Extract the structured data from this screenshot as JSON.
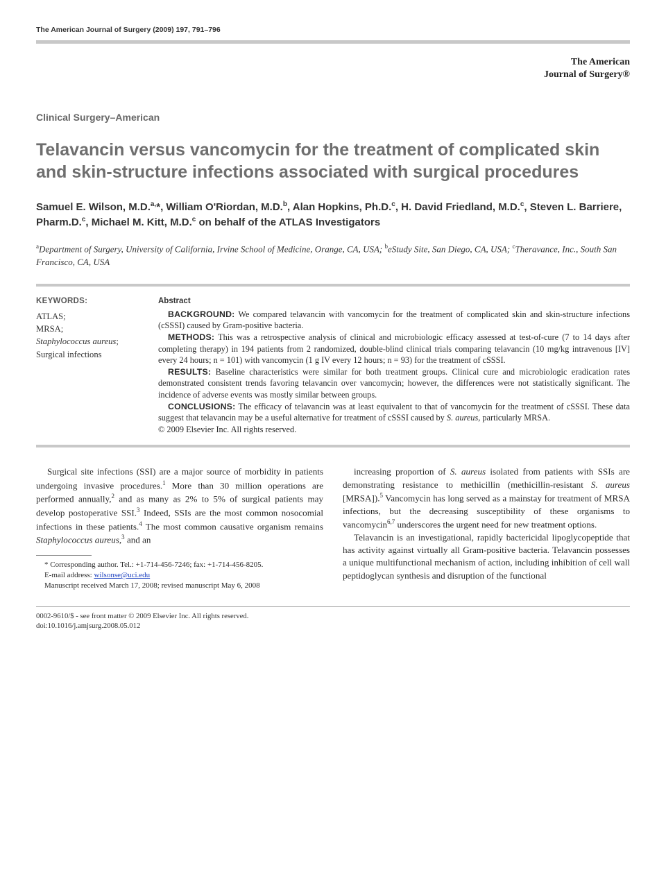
{
  "header": {
    "citation": "The American Journal of Surgery (2009) 197, 791–796",
    "brand_line1": "The American",
    "brand_line2": "Journal of Surgery®"
  },
  "section_label": "Clinical Surgery–American",
  "title": "Telavancin versus vancomycin for the treatment of complicated skin and skin-structure infections associated with surgical procedures",
  "authors_html": "Samuel E. Wilson, M.D.<sup>a,</sup>*, William O'Riordan, M.D.<sup>b</sup>, Alan Hopkins, Ph.D.<sup>c</sup>, H. David Friedland, M.D.<sup>c</sup>, Steven L. Barriere, Pharm.D.<sup>c</sup>, Michael M. Kitt, M.D.<sup>c</sup> on behalf of the ATLAS Investigators",
  "affiliations_html": "<sup>a</sup>Department of Surgery, University of California, Irvine School of Medicine, Orange, CA, USA; <sup>b</sup>eStudy Site, San Diego, CA, USA; <sup>c</sup>Theravance, Inc., South San Francisco, CA, USA",
  "keywords": {
    "heading": "KEYWORDS:",
    "items": [
      "ATLAS;",
      "MRSA;",
      "<span class=\"it\">Staphylococcus aureus</span>;",
      "Surgical infections"
    ]
  },
  "abstract": {
    "heading": "Abstract",
    "paragraphs": [
      {
        "label": "BACKGROUND:",
        "text": "We compared telavancin with vancomycin for the treatment of complicated skin and skin-structure infections (cSSSI) caused by Gram-positive bacteria."
      },
      {
        "label": "METHODS:",
        "text": "This was a retrospective analysis of clinical and microbiologic efficacy assessed at test-of-cure (7 to 14 days after completing therapy) in 194 patients from 2 randomized, double-blind clinical trials comparing telavancin (10 mg/kg intravenous [IV] every 24 hours; n = 101) with vancomycin (1 g IV every 12 hours; n = 93) for the treatment of cSSSI."
      },
      {
        "label": "RESULTS:",
        "text": "Baseline characteristics were similar for both treatment groups. Clinical cure and microbiologic eradication rates demonstrated consistent trends favoring telavancin over vancomycin; however, the differences were not statistically significant. The incidence of adverse events was mostly similar between groups."
      },
      {
        "label": "CONCLUSIONS:",
        "text": "The efficacy of telavancin was at least equivalent to that of vancomycin for the treatment of cSSSI. These data suggest that telavancin may be a useful alternative for treatment of cSSSI caused by <span class=\"it\">S. aureus</span>, particularly MRSA."
      }
    ],
    "copyright": "© 2009 Elsevier Inc. All rights reserved."
  },
  "body": {
    "left": "Surgical site infections (SSI) are a major source of morbidity in patients undergoing invasive procedures.<sup>1</sup> More than 30 million operations are performed annually,<sup>2</sup> and as many as 2% to 5% of surgical patients may develop postoperative SSI.<sup>3</sup> Indeed, SSIs are the most common nosocomial infections in these patients.<sup>4</sup> The most common causative organism remains <span class=\"it\">Staphylococcus aureus</span>,<sup>3</sup> and an",
    "right_p1": "increasing proportion of <span class=\"it\">S. aureus</span> isolated from patients with SSIs are demonstrating resistance to methicillin (methicillin-resistant <span class=\"it\">S. aureus</span> [MRSA]).<sup>5</sup> Vancomycin has long served as a mainstay for treatment of MRSA infections, but the decreasing susceptibility of these organisms to vancomycin<sup>6,7</sup> underscores the urgent need for new treatment options.",
    "right_p2": "Telavancin is an investigational, rapidly bactericidal lipoglycopeptide that has activity against virtually all Gram-positive bacteria. Telavancin possesses a unique multifunctional mechanism of action, including inhibition of cell wall peptidoglycan synthesis and disruption of the functional"
  },
  "footnotes": {
    "corr": "* Corresponding author. Tel.: +1-714-456-7246; fax: +1-714-456-8205.",
    "email_label": "E-mail address:",
    "email": "wilsonse@uci.edu",
    "manuscript": "Manuscript received March 17, 2008; revised manuscript May 6, 2008"
  },
  "bottom": {
    "copyright": "0002-9610/$ - see front matter © 2009 Elsevier Inc. All rights reserved.",
    "doi": "doi:10.1016/j.amjsurg.2008.05.012"
  },
  "colors": {
    "rule_gray": "#c8c8c8",
    "title_gray": "#6e6e6e",
    "text": "#2a2a2a",
    "link": "#1a3fbf"
  },
  "typography": {
    "body_pt": 13.1,
    "title_pt": 25,
    "authors_pt": 15,
    "abstract_pt": 12.3
  }
}
